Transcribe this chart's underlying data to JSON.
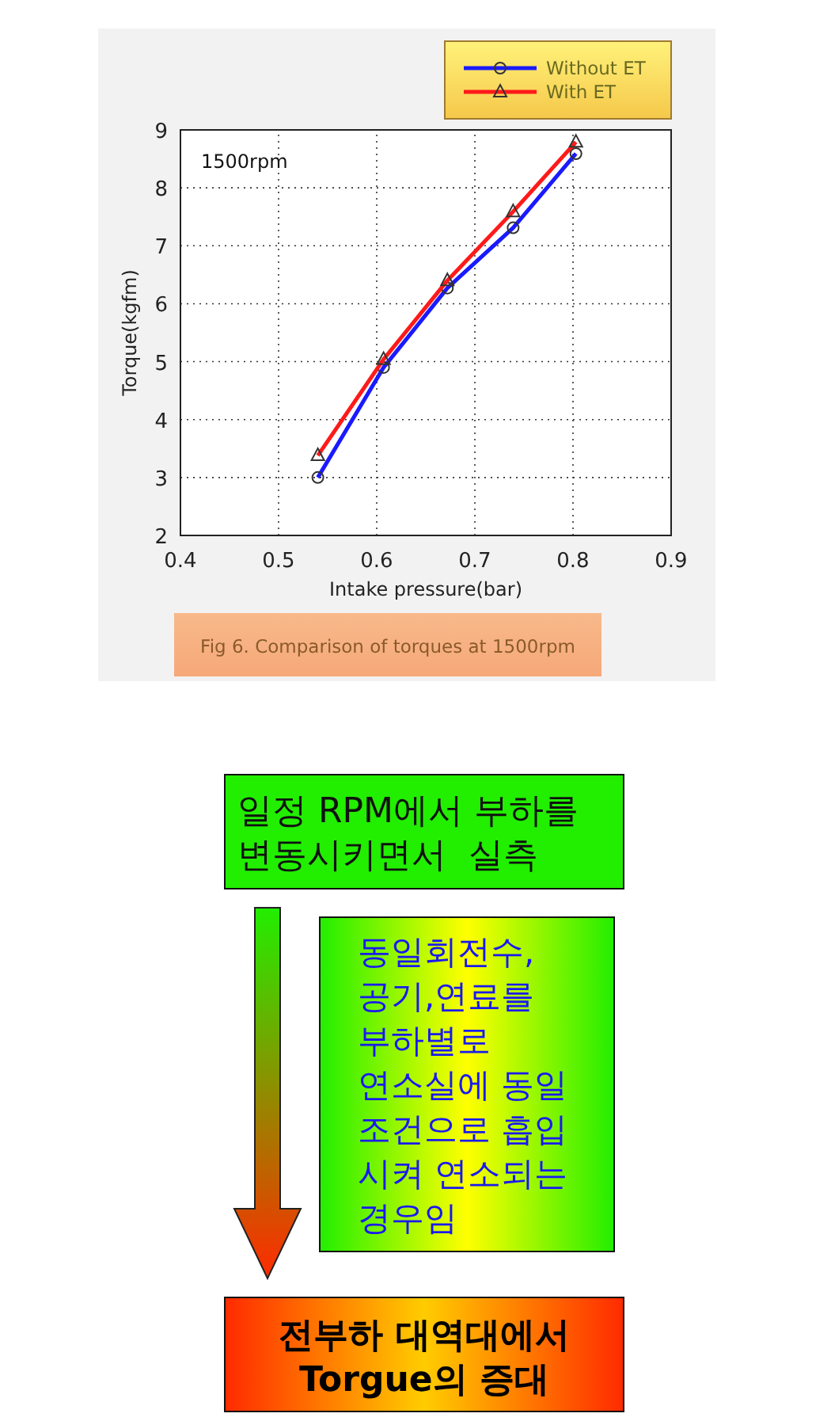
{
  "chart_data": [
    {
      "type": "line",
      "xlabel": "Intake pressure(bar)",
      "ylabel": "Torque(kgfm)",
      "xlim": [
        0.4,
        0.9
      ],
      "ylim": [
        2,
        9
      ],
      "xticks": [
        0.4,
        0.5,
        0.6,
        0.7,
        0.8,
        0.9
      ],
      "yticks": [
        2,
        3,
        4,
        5,
        6,
        7,
        8,
        9
      ],
      "grid": true,
      "legend": "top right",
      "line_style": "solid",
      "annotations": [
        "1500rpm",
        "Fig 6. Comparison of torques at 1500rpm"
      ],
      "series": [
        {
          "name": "Without ET",
          "color": "#1a1aff",
          "marker": "circle",
          "x": [
            0.54,
            0.607,
            0.672,
            0.739,
            0.803
          ],
          "values": [
            3.0,
            4.9,
            6.27,
            7.31,
            8.59
          ]
        },
        {
          "name": "With ET",
          "color": "#ff1a1a",
          "marker": "triangle",
          "x": [
            0.54,
            0.607,
            0.672,
            0.739,
            0.803
          ],
          "values": [
            3.38,
            5.04,
            6.4,
            7.59,
            8.79
          ]
        }
      ]
    },
    {
      "type": "other",
      "annotations": [
        "일정 RPM에서 부하를\n변동시키면서  실측",
        "동일회전수,\n공기,연료를\n부하별로\n연소실에 동일\n조건으로 흡입\n시켜 연소되는\n경우임",
        "전부하 대역대에서\nTorgue의 증대"
      ]
    }
  ]
}
